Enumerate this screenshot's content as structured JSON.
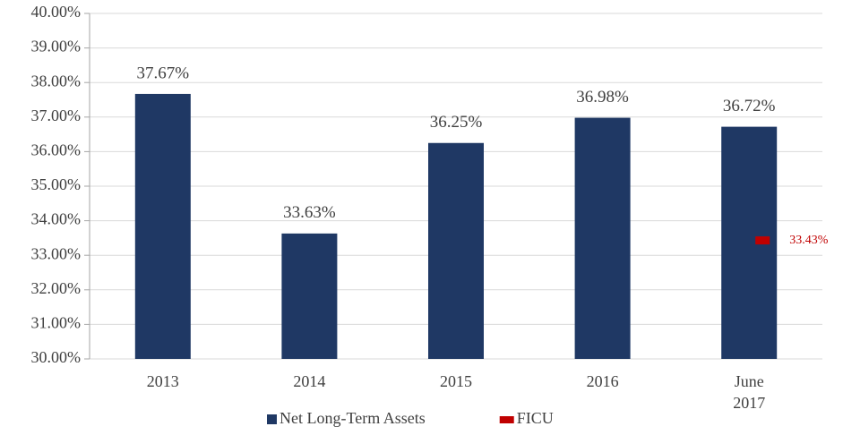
{
  "chart_data": {
    "type": "bar",
    "categories": [
      "2013",
      "2014",
      "2015",
      "2016",
      "June 2017"
    ],
    "series": [
      {
        "name": "Net Long-Term Assets",
        "color": "#1f3864",
        "values": [
          37.67,
          33.63,
          36.25,
          36.98,
          36.72
        ],
        "value_labels": [
          "37.67%",
          "33.63%",
          "36.25%",
          "36.98%",
          "36.72%"
        ]
      },
      {
        "name": "FICU",
        "color": "#c00000",
        "values": [
          null,
          null,
          null,
          null,
          33.43
        ],
        "value_labels": [
          null,
          null,
          null,
          null,
          "33.43%"
        ]
      }
    ],
    "ylim": [
      30,
      40
    ],
    "yticks": [
      {
        "value": 30,
        "label": "30.00%"
      },
      {
        "value": 31,
        "label": "31.00%"
      },
      {
        "value": 32,
        "label": "32.00%"
      },
      {
        "value": 33,
        "label": "33.00%"
      },
      {
        "value": 34,
        "label": "34.00%"
      },
      {
        "value": 35,
        "label": "35.00%"
      },
      {
        "value": 36,
        "label": "36.00%"
      },
      {
        "value": 37,
        "label": "37.00%"
      },
      {
        "value": 38,
        "label": "38.00%"
      },
      {
        "value": 39,
        "label": "39.00%"
      },
      {
        "value": 40,
        "label": "40.00%"
      }
    ],
    "grid": true,
    "legend": "bottom"
  }
}
